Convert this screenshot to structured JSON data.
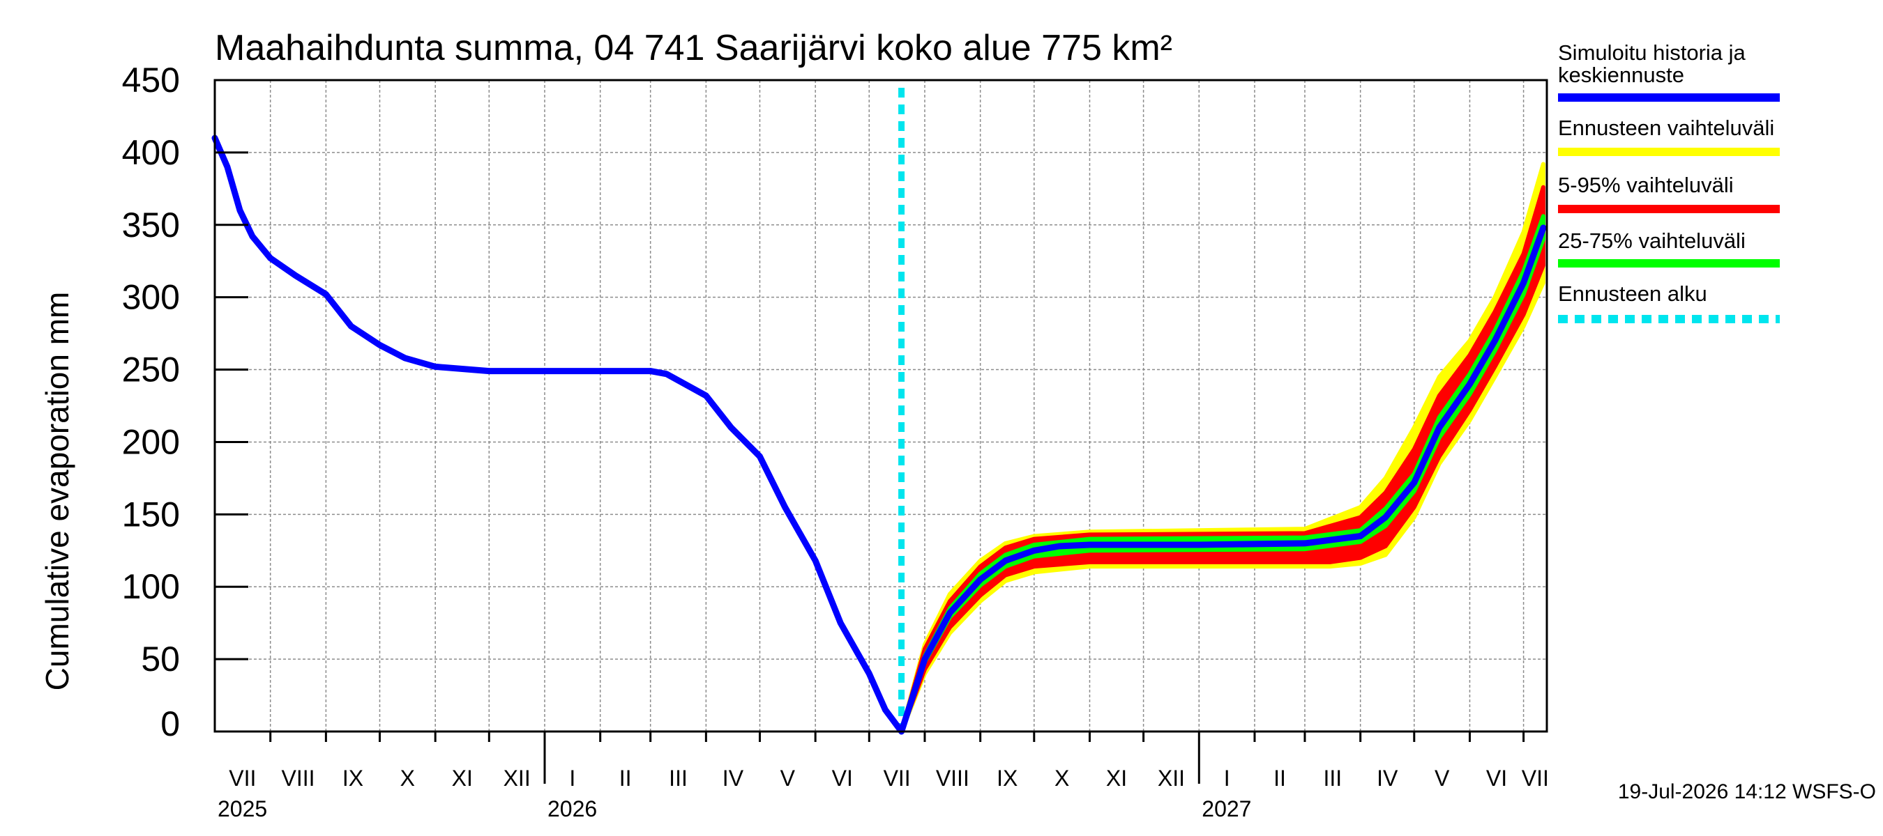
{
  "chart_data": {
    "type": "line",
    "title": "Maahaihdunta summa, 04 741 Saarijärvi koko alue 775 km²",
    "ylabel": "Cumulative evaporation   mm",
    "xlabel": "",
    "ylim": [
      0,
      450
    ],
    "yticks": [
      "0",
      "50",
      "100",
      "150",
      "200",
      "250",
      "300",
      "350",
      "400",
      "450"
    ],
    "months": [
      "VII",
      "VIII",
      "IX",
      "X",
      "XI",
      "XII",
      "I",
      "II",
      "III",
      "IV",
      "V",
      "VI",
      "VII",
      "VIII",
      "IX",
      "X",
      "XI",
      "XII",
      "I",
      "II",
      "III",
      "IV",
      "V",
      "VI",
      "VII"
    ],
    "years": [
      "2025",
      "2026",
      "2027"
    ],
    "grid": true,
    "legend_placement": "right",
    "forecast_start": "2026-07-19",
    "series": [
      {
        "name": "Simuloitu historia ja keskiennuste",
        "color": "#0000ff",
        "points": [
          [
            "2025-07-01",
            410
          ],
          [
            "2025-07-08",
            390
          ],
          [
            "2025-07-15",
            360
          ],
          [
            "2025-07-22",
            342
          ],
          [
            "2025-08-01",
            327
          ],
          [
            "2025-08-15",
            315
          ],
          [
            "2025-09-01",
            302
          ],
          [
            "2025-09-15",
            280
          ],
          [
            "2025-10-01",
            267
          ],
          [
            "2025-10-15",
            258
          ],
          [
            "2025-11-01",
            252
          ],
          [
            "2025-12-01",
            249
          ],
          [
            "2026-01-01",
            249
          ],
          [
            "2026-03-01",
            249
          ],
          [
            "2026-03-10",
            247
          ],
          [
            "2026-04-01",
            232
          ],
          [
            "2026-04-15",
            210
          ],
          [
            "2026-05-01",
            190
          ],
          [
            "2026-05-15",
            155
          ],
          [
            "2026-06-01",
            118
          ],
          [
            "2026-06-15",
            75
          ],
          [
            "2026-07-01",
            40
          ],
          [
            "2026-07-10",
            15
          ],
          [
            "2026-07-19",
            0
          ],
          [
            "2026-08-01",
            50
          ],
          [
            "2026-08-15",
            82
          ],
          [
            "2026-09-01",
            105
          ],
          [
            "2026-09-15",
            118
          ],
          [
            "2026-10-01",
            125
          ],
          [
            "2026-10-15",
            128
          ],
          [
            "2026-11-01",
            129
          ],
          [
            "2027-01-01",
            129
          ],
          [
            "2027-03-01",
            130
          ],
          [
            "2027-04-01",
            135
          ],
          [
            "2027-04-15",
            148
          ],
          [
            "2027-05-01",
            172
          ],
          [
            "2027-05-15",
            210
          ],
          [
            "2027-06-01",
            240
          ],
          [
            "2027-06-15",
            270
          ],
          [
            "2027-07-01",
            310
          ],
          [
            "2027-07-12",
            348
          ]
        ]
      },
      {
        "name": "Ennusteen vaihteluväli",
        "color": "#ffff00",
        "lower": [
          [
            "2026-07-19",
            0
          ],
          [
            "2026-08-01",
            40
          ],
          [
            "2026-08-15",
            68
          ],
          [
            "2026-09-01",
            90
          ],
          [
            "2026-09-15",
            104
          ],
          [
            "2026-10-01",
            110
          ],
          [
            "2026-11-01",
            114
          ],
          [
            "2027-03-15",
            114
          ],
          [
            "2027-04-01",
            116
          ],
          [
            "2027-04-15",
            122
          ],
          [
            "2027-05-01",
            148
          ],
          [
            "2027-05-15",
            185
          ],
          [
            "2027-06-01",
            215
          ],
          [
            "2027-06-15",
            245
          ],
          [
            "2027-07-01",
            280
          ],
          [
            "2027-07-12",
            310
          ]
        ],
        "upper": [
          [
            "2026-07-19",
            0
          ],
          [
            "2026-08-01",
            60
          ],
          [
            "2026-08-15",
            95
          ],
          [
            "2026-09-01",
            118
          ],
          [
            "2026-09-15",
            130
          ],
          [
            "2026-10-01",
            135
          ],
          [
            "2026-11-01",
            138
          ],
          [
            "2027-03-01",
            140
          ],
          [
            "2027-04-01",
            155
          ],
          [
            "2027-04-15",
            175
          ],
          [
            "2027-05-01",
            210
          ],
          [
            "2027-05-15",
            245
          ],
          [
            "2027-06-01",
            270
          ],
          [
            "2027-06-15",
            300
          ],
          [
            "2027-07-01",
            345
          ],
          [
            "2027-07-12",
            392
          ]
        ]
      },
      {
        "name": "5-95% vaihteluväli",
        "color": "#ff0000",
        "lower": [
          [
            "2026-07-19",
            0
          ],
          [
            "2026-08-01",
            43
          ],
          [
            "2026-08-15",
            72
          ],
          [
            "2026-09-01",
            94
          ],
          [
            "2026-09-15",
            108
          ],
          [
            "2026-10-01",
            114
          ],
          [
            "2026-11-01",
            117
          ],
          [
            "2027-03-15",
            117
          ],
          [
            "2027-04-01",
            120
          ],
          [
            "2027-04-15",
            128
          ],
          [
            "2027-05-01",
            155
          ],
          [
            "2027-05-15",
            190
          ],
          [
            "2027-06-01",
            222
          ],
          [
            "2027-06-15",
            252
          ],
          [
            "2027-07-01",
            288
          ],
          [
            "2027-07-12",
            322
          ]
        ],
        "upper": [
          [
            "2026-07-19",
            0
          ],
          [
            "2026-08-01",
            57
          ],
          [
            "2026-08-15",
            90
          ],
          [
            "2026-09-01",
            114
          ],
          [
            "2026-09-15",
            127
          ],
          [
            "2026-10-01",
            133
          ],
          [
            "2026-11-01",
            136
          ],
          [
            "2027-03-01",
            137
          ],
          [
            "2027-04-01",
            148
          ],
          [
            "2027-04-15",
            165
          ],
          [
            "2027-05-01",
            195
          ],
          [
            "2027-05-15",
            232
          ],
          [
            "2027-06-01",
            260
          ],
          [
            "2027-06-15",
            290
          ],
          [
            "2027-07-01",
            330
          ],
          [
            "2027-07-12",
            376
          ]
        ]
      },
      {
        "name": "25-75% vaihteluväli",
        "color": "#00ff00",
        "lower": [
          [
            "2026-07-19",
            0
          ],
          [
            "2026-08-01",
            48
          ],
          [
            "2026-08-15",
            79
          ],
          [
            "2026-09-01",
            101
          ],
          [
            "2026-09-15",
            114
          ],
          [
            "2026-10-01",
            121
          ],
          [
            "2026-11-01",
            125
          ],
          [
            "2027-03-01",
            126
          ],
          [
            "2027-04-01",
            131
          ],
          [
            "2027-04-15",
            142
          ],
          [
            "2027-05-01",
            166
          ],
          [
            "2027-05-15",
            203
          ],
          [
            "2027-06-01",
            233
          ],
          [
            "2027-06-15",
            263
          ],
          [
            "2027-07-01",
            302
          ],
          [
            "2027-07-12",
            340
          ]
        ],
        "upper": [
          [
            "2026-07-19",
            0
          ],
          [
            "2026-08-01",
            52
          ],
          [
            "2026-08-15",
            85
          ],
          [
            "2026-09-01",
            109
          ],
          [
            "2026-09-15",
            122
          ],
          [
            "2026-10-01",
            129
          ],
          [
            "2026-11-01",
            133
          ],
          [
            "2027-03-01",
            134
          ],
          [
            "2027-04-01",
            139
          ],
          [
            "2027-04-15",
            154
          ],
          [
            "2027-05-01",
            178
          ],
          [
            "2027-05-15",
            217
          ],
          [
            "2027-06-01",
            247
          ],
          [
            "2027-06-15",
            277
          ],
          [
            "2027-07-01",
            318
          ],
          [
            "2027-07-12",
            356
          ]
        ]
      },
      {
        "name": "Ennusteen alku",
        "color": "#00e5ee"
      }
    ],
    "footer": "19-Jul-2026 14:12 WSFS-O"
  }
}
